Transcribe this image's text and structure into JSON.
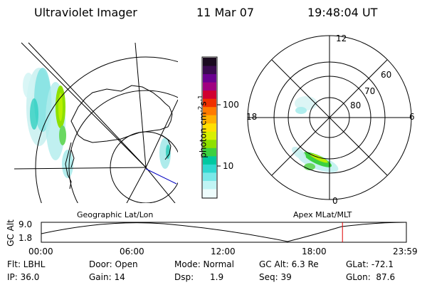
{
  "header": {
    "instrument": "Ultraviolet Imager",
    "date": "11 Mar 07",
    "time": "19:48:04 UT"
  },
  "colorbar": {
    "label": "photon cm",
    "label_exp": "-2",
    "label_s": "s",
    "label_exp2": "-1",
    "ticks": [
      "100",
      "10"
    ],
    "colors": [
      "#1a0a1f",
      "#3a0a50",
      "#6a0090",
      "#a00080",
      "#d00030",
      "#f03000",
      "#ff7a00",
      "#ffb000",
      "#ffe000",
      "#d8f000",
      "#8ee000",
      "#3cd040",
      "#00c8a0",
      "#30d8d0",
      "#7ae8e8",
      "#c0f4f4",
      "#eefcfc"
    ]
  },
  "polar_plot": {
    "labels": {
      "top": "12",
      "left": "18",
      "right": "6",
      "bottom": "0"
    },
    "lat_labels": [
      "60",
      "70",
      "80"
    ]
  },
  "map_labels": {
    "left": "Geographic Lat/Lon",
    "right": "Apex MLat/MLT"
  },
  "altitude_strip": {
    "axis_label": "GC Alt",
    "y_max": "9.0",
    "y_min": "1.8",
    "time_ticks": [
      "00:00",
      "06:00",
      "12:00",
      "18:00",
      "23:59"
    ],
    "current_marker_hours": 19.8
  },
  "footer": {
    "row1": {
      "filter": "Flt: LBHL",
      "door": "Door: Open",
      "mode": "Mode: Normal",
      "gc_alt": "GC Alt: 6.3 Re",
      "glat": "GLat: -72.1"
    },
    "row2": {
      "ip": "IP: 36.0",
      "gain": "Gain: 14",
      "dsp": "Dsp:      1.9",
      "seq": "Seq: 39",
      "glon": "GLon:  87.6"
    }
  }
}
